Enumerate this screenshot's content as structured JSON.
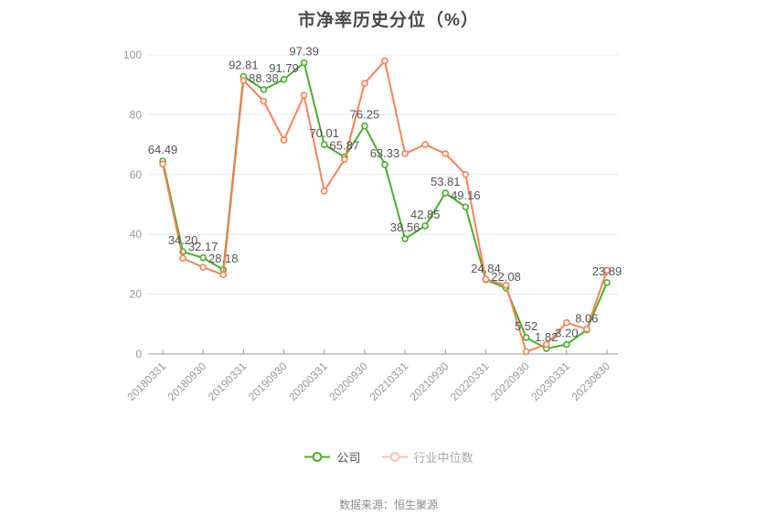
{
  "title": "市净率历史分位（%）",
  "footer": "数据来源：恒生聚源",
  "legend": {
    "items": [
      {
        "label": "公司"
      },
      {
        "label": "行业中位数"
      }
    ]
  },
  "colors": {
    "company": "#45b128",
    "industry_median": "#fa8155",
    "grid": "#e5ebf4",
    "axis": "#999999",
    "point_label": "#555555"
  },
  "chart_data": {
    "type": "line",
    "title": "市净率历史分位（%）",
    "xlabel": "",
    "ylabel": "",
    "ylim": [
      0,
      100
    ],
    "y_ticks": [
      0,
      20,
      40,
      60,
      80,
      100
    ],
    "grid": true,
    "legend_position": "bottom",
    "x_tick_labels": [
      "20180331",
      "20180930",
      "20190331",
      "20190930",
      "20200331",
      "20200930",
      "20210331",
      "20210930",
      "20220331",
      "20220930",
      "20230331",
      "20230830"
    ],
    "points_per_x_tick": 2,
    "series": [
      {
        "name": "公司",
        "color": "#45b128",
        "values": [
          64.49,
          34.2,
          32.17,
          28.18,
          92.81,
          88.38,
          91.79,
          97.39,
          70.01,
          65.87,
          76.25,
          63.33,
          38.56,
          42.85,
          53.81,
          49.16,
          24.84,
          22.08,
          5.52,
          1.82,
          3.2,
          8.06,
          23.89
        ],
        "value_labels": [
          "64.49",
          "34.20",
          "32.17",
          "28.18",
          "92.81",
          "88.38",
          "91.79",
          "97.39",
          "70.01",
          "65.87",
          "76.25",
          "63.33",
          "38.56",
          "42.85",
          "53.81",
          "49.16",
          "24.84",
          "22.08",
          "5.52",
          "1.82",
          "3.20",
          "8.06",
          "23.89"
        ]
      },
      {
        "name": "行业中位数",
        "color": "#fa8155",
        "values": [
          63.5,
          32.0,
          29.0,
          26.5,
          91.5,
          84.5,
          71.5,
          86.5,
          54.5,
          65.0,
          90.5,
          98.0,
          67.0,
          70.0,
          67.0,
          60.0,
          25.0,
          23.0,
          0.8,
          3.2,
          10.5,
          8.3,
          28.0
        ],
        "value_labels": null
      }
    ]
  }
}
